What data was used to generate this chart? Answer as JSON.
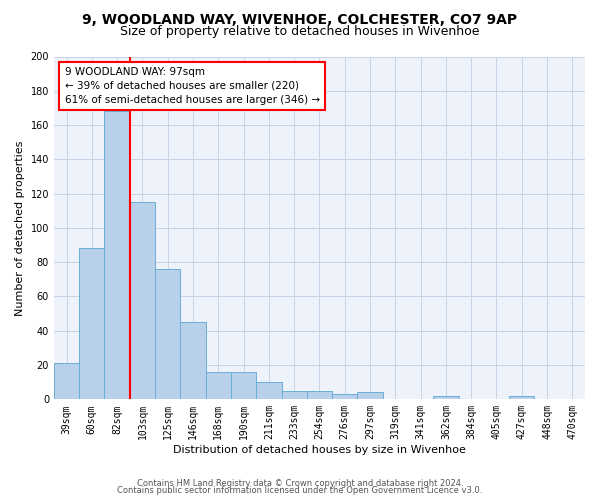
{
  "title1": "9, WOODLAND WAY, WIVENHOE, COLCHESTER, CO7 9AP",
  "title2": "Size of property relative to detached houses in Wivenhoe",
  "xlabel": "Distribution of detached houses by size in Wivenhoe",
  "ylabel": "Number of detached properties",
  "categories": [
    "39sqm",
    "60sqm",
    "82sqm",
    "103sqm",
    "125sqm",
    "146sqm",
    "168sqm",
    "190sqm",
    "211sqm",
    "233sqm",
    "254sqm",
    "276sqm",
    "297sqm",
    "319sqm",
    "341sqm",
    "362sqm",
    "384sqm",
    "405sqm",
    "427sqm",
    "448sqm",
    "470sqm"
  ],
  "values": [
    21,
    88,
    168,
    115,
    76,
    45,
    16,
    16,
    10,
    5,
    5,
    3,
    4,
    0,
    0,
    2,
    0,
    0,
    2,
    0,
    0
  ],
  "bar_color": "#b8d0ea",
  "bar_edge_color": "#6aaed6",
  "vline_x": 2.5,
  "vline_color": "red",
  "annotation_line1": "9 WOODLAND WAY: 97sqm",
  "annotation_line2": "← 39% of detached houses are smaller (220)",
  "annotation_line3": "61% of semi-detached houses are larger (346) →",
  "ylim": [
    0,
    200
  ],
  "yticks": [
    0,
    20,
    40,
    60,
    80,
    100,
    120,
    140,
    160,
    180,
    200
  ],
  "footer1": "Contains HM Land Registry data © Crown copyright and database right 2024.",
  "footer2": "Contains public sector information licensed under the Open Government Licence v3.0.",
  "background_color": "#eef2fb",
  "grid_color": "#c8d4e8",
  "title_fontsize": 10,
  "subtitle_fontsize": 9,
  "axis_label_fontsize": 8,
  "tick_fontsize": 7,
  "footer_fontsize": 6
}
